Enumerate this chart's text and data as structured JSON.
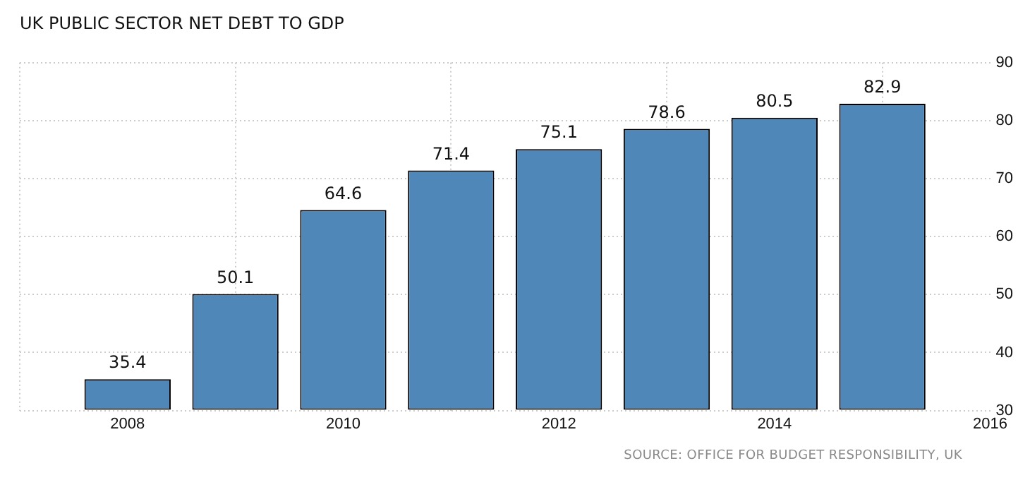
{
  "chart_data": {
    "type": "bar",
    "title": "UK PUBLIC SECTOR NET DEBT TO GDP",
    "x": [
      2008,
      2009,
      2010,
      2011,
      2012,
      2013,
      2014,
      2015
    ],
    "values": [
      35.4,
      50.1,
      64.6,
      71.4,
      75.1,
      78.6,
      80.5,
      82.9
    ],
    "color": "#4f87b9",
    "xlim": [
      2007,
      2016
    ],
    "xticks": [
      2008,
      2010,
      2012,
      2014,
      2016
    ],
    "ylim": [
      30,
      90
    ],
    "yticks": [
      30,
      40,
      50,
      60,
      70,
      80,
      90
    ],
    "grid": true,
    "data_labels": true,
    "annotations": [
      "SOURCE: OFFICE FOR BUDGET RESPONSIBILITY, UK"
    ]
  }
}
